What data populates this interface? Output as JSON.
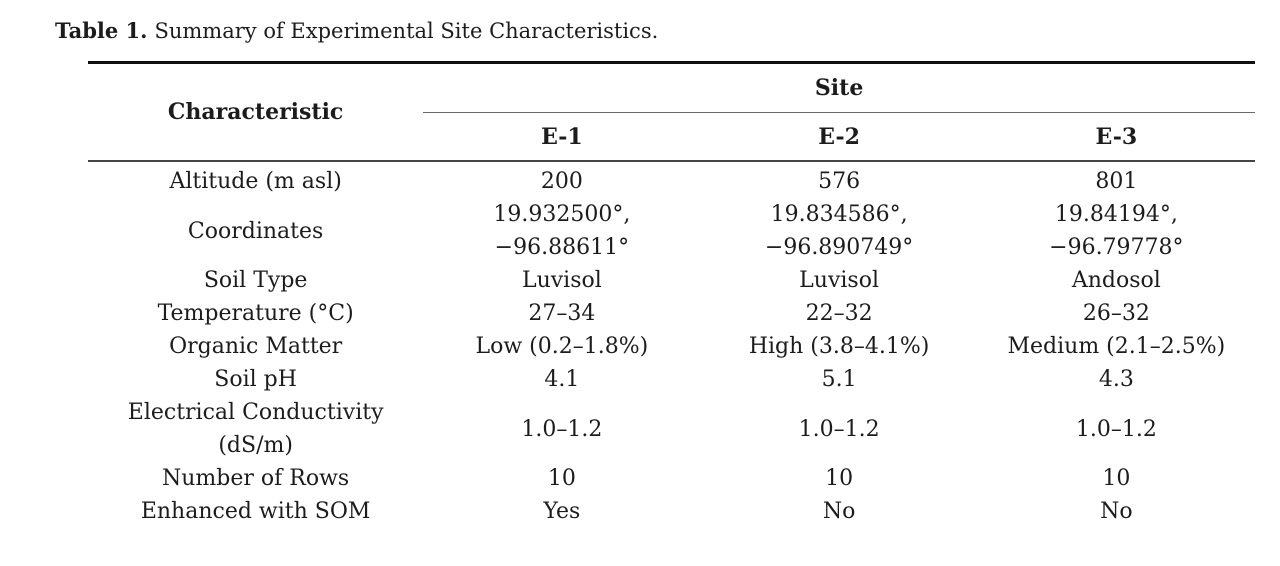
{
  "caption": {
    "label": "Table 1.",
    "text": "Summary of Experimental Site Characteristics."
  },
  "table": {
    "characteristic_header": "Characteristic",
    "site_group_header": "Site",
    "site_columns": [
      "E-1",
      "E-2",
      "E-3"
    ],
    "rows": [
      {
        "characteristic": "Altitude (m asl)",
        "e1": "200",
        "e2": "576",
        "e3": "801"
      },
      {
        "characteristic": "Coordinates",
        "e1": "19.932500°,\n−96.88611°",
        "e2": "19.834586°,\n−96.890749°",
        "e3": "19.84194°,\n−96.79778°"
      },
      {
        "characteristic": "Soil Type",
        "e1": "Luvisol",
        "e2": "Luvisol",
        "e3": "Andosol"
      },
      {
        "characteristic": "Temperature (°C)",
        "e1": "27–34",
        "e2": "22–32",
        "e3": "26–32"
      },
      {
        "characteristic": "Organic Matter",
        "e1": "Low (0.2–1.8%)",
        "e2": "High (3.8–4.1%)",
        "e3": "Medium (2.1–2.5%)"
      },
      {
        "characteristic": "Soil pH",
        "e1": "4.1",
        "e2": "5.1",
        "e3": "4.3"
      },
      {
        "characteristic": "Electrical Conductivity\n(dS/m)",
        "e1": "1.0–1.2",
        "e2": "1.0–1.2",
        "e3": "1.0–1.2"
      },
      {
        "characteristic": "Number of Rows",
        "e1": "10",
        "e2": "10",
        "e3": "10"
      },
      {
        "characteristic": "Enhanced with SOM",
        "e1": "Yes",
        "e2": "No",
        "e3": "No"
      }
    ]
  },
  "colors": {
    "text": "#1c1c1c",
    "rule_heavy": "#101010",
    "rule_medium": "#454545",
    "rule_light": "#6b6b6b",
    "background": "#ffffff"
  }
}
